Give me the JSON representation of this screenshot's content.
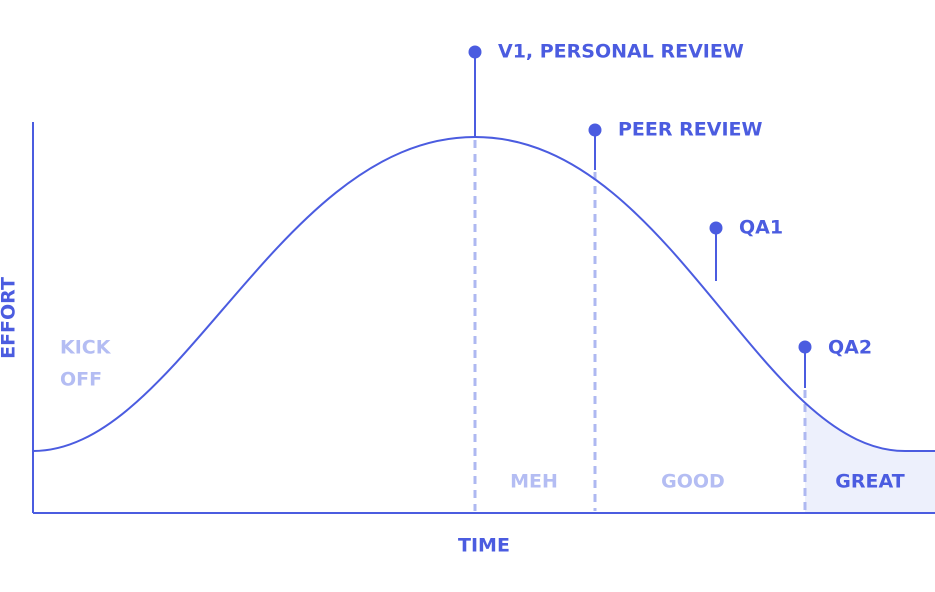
{
  "axes": {
    "y_label": "EFFORT",
    "x_label": "TIME"
  },
  "start_label": [
    "KICK",
    "OFF"
  ],
  "milestones": [
    {
      "label": "V1, PERSONAL REVIEW"
    },
    {
      "label": "PEER REVIEW"
    },
    {
      "label": "QA1"
    },
    {
      "label": "QA2"
    }
  ],
  "zones": [
    {
      "label": "MEH"
    },
    {
      "label": "GOOD"
    },
    {
      "label": "GREAT"
    }
  ]
}
